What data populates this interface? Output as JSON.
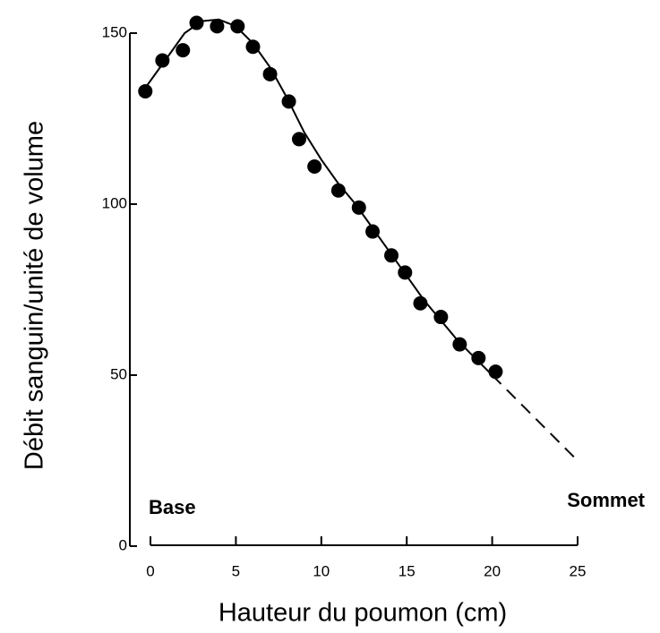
{
  "chart_data": {
    "type": "scatter",
    "xlabel": "Hauteur du poumon (cm)",
    "ylabel": "Débit sanguin/unité de volume",
    "annotations": [
      "Base",
      "Sommet"
    ],
    "xlim": [
      0,
      25
    ],
    "ylim": [
      0,
      150
    ],
    "xticks": [
      0,
      5,
      10,
      15,
      20,
      25
    ],
    "yticks": [
      0,
      50,
      100,
      150
    ],
    "series": [
      {
        "color": "#000000",
        "x": [
          -0.3,
          0.7,
          1.9,
          2.7,
          3.9,
          5.1,
          6.0,
          7.0,
          8.1,
          8.7,
          9.6,
          11.0,
          12.2,
          13.0,
          14.1,
          14.9,
          15.8,
          17.0,
          18.1,
          19.2,
          20.2
        ],
        "values": [
          133,
          142,
          145,
          153,
          152,
          152,
          146,
          138,
          130,
          119,
          111,
          104,
          99,
          92,
          85,
          80,
          71,
          67,
          59,
          55,
          51
        ]
      }
    ],
    "lines": [
      {
        "style": "solid",
        "x": [
          -0.3,
          1,
          2,
          3,
          4,
          5,
          6,
          7,
          8,
          9,
          10,
          11,
          12,
          13,
          14,
          15,
          16,
          17,
          18,
          19,
          20
        ],
        "values": [
          134,
          143,
          150,
          153.5,
          154,
          152,
          147,
          140,
          131,
          121,
          113,
          106,
          100,
          93,
          86,
          79,
          72,
          66,
          60,
          55,
          50
        ]
      },
      {
        "style": "dashed",
        "x": [
          20,
          21,
          22,
          23,
          24,
          25
        ],
        "values": [
          50,
          45,
          40,
          35,
          30,
          25
        ]
      }
    ]
  }
}
